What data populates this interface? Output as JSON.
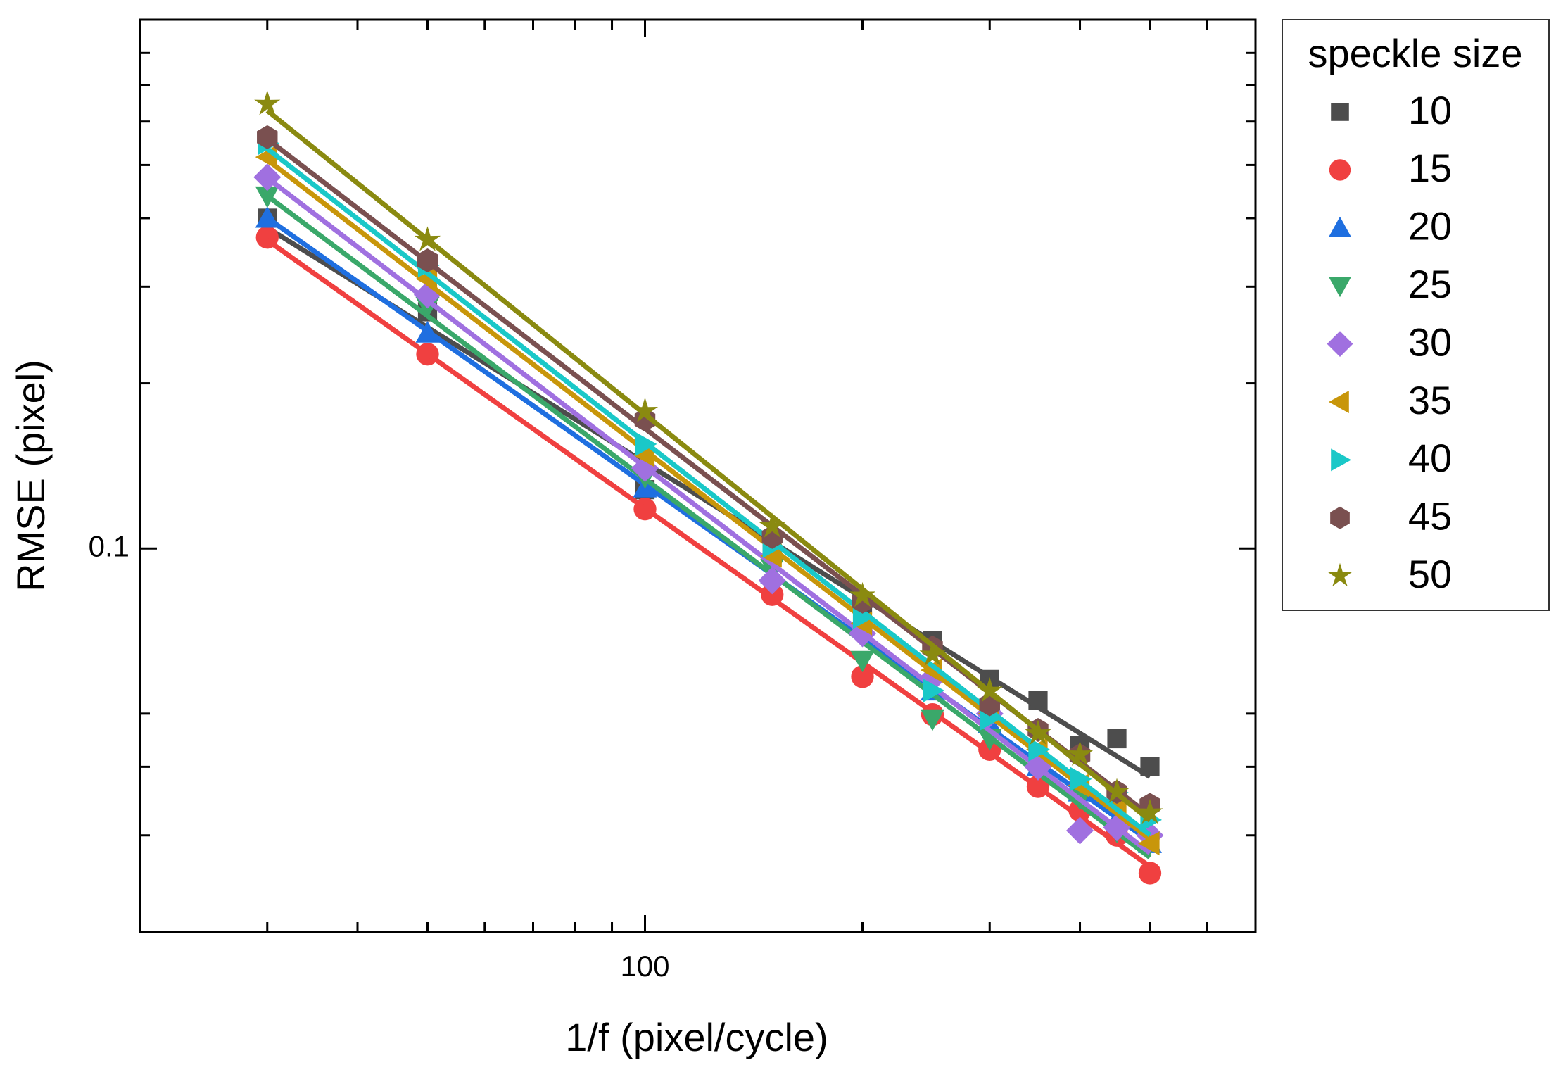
{
  "chart_data": {
    "type": "scatter",
    "x_label": "1/f (pixel/cycle)",
    "y_label": "RMSE (pixel)",
    "legend_title": "speckle size",
    "legend": "outside right",
    "x_log": true,
    "y_log": true,
    "fit": "linear log-log",
    "xlim": [
      20,
      700
    ],
    "ylim": [
      0.02,
      0.92
    ],
    "xticks": [
      100
    ],
    "yticks": [
      0.1
    ],
    "xminor_ticks": [
      30,
      40,
      50,
      60,
      70,
      80,
      90,
      200,
      300,
      400,
      500,
      600,
      700
    ],
    "yminor_ticks": [
      0.03,
      0.04,
      0.05,
      0.2,
      0.3,
      0.4,
      0.5,
      0.6,
      0.7,
      0.8
    ],
    "x": [
      30,
      50,
      100,
      150,
      200,
      250,
      300,
      350,
      400,
      450,
      500
    ],
    "series": [
      {
        "name": "10",
        "color": "#4d4d4d",
        "marker": "square",
        "values": [
          0.4,
          0.27,
          0.128,
          0.098,
          0.079,
          0.068,
          0.0577,
          0.0528,
          0.0437,
          0.045,
          0.04
        ]
      },
      {
        "name": "15",
        "color": "#f04040",
        "marker": "circle",
        "values": [
          0.369,
          0.226,
          0.118,
          0.0824,
          0.0584,
          0.0498,
          0.043,
          0.0368,
          0.0333,
          0.03,
          0.0256
        ]
      },
      {
        "name": "20",
        "color": "#1f6fe0",
        "marker": "triangle-up",
        "values": [
          0.4,
          0.247,
          0.129,
          0.09,
          0.072,
          0.055,
          0.048,
          0.04,
          0.036,
          0.032,
          0.029
        ]
      },
      {
        "name": "25",
        "color": "#3aa86a",
        "marker": "triangle-down",
        "values": [
          0.439,
          0.276,
          0.135,
          0.092,
          0.0625,
          0.0489,
          0.045,
          0.04,
          0.035,
          0.0305,
          0.029
        ]
      },
      {
        "name": "30",
        "color": "#a070e0",
        "marker": "diamond",
        "values": [
          0.475,
          0.29,
          0.14,
          0.0874,
          0.07,
          0.058,
          0.05,
          0.04,
          0.0306,
          0.031,
          0.03
        ]
      },
      {
        "name": "35",
        "color": "#c8960a",
        "marker": "triangle-left",
        "values": [
          0.517,
          0.31,
          0.148,
          0.097,
          0.073,
          0.06,
          0.05,
          0.043,
          0.037,
          0.034,
          0.029
        ]
      },
      {
        "name": "40",
        "color": "#1ac8c8",
        "marker": "triangle-right",
        "values": [
          0.548,
          0.328,
          0.155,
          0.101,
          0.075,
          0.0551,
          0.049,
          0.043,
          0.038,
          0.0359,
          0.032
        ]
      },
      {
        "name": "45",
        "color": "#7a5050",
        "marker": "hexagon",
        "values": [
          0.562,
          0.335,
          0.1716,
          0.105,
          0.08,
          0.066,
          0.052,
          0.0467,
          0.042,
          0.036,
          0.0341
        ]
      },
      {
        "name": "50",
        "color": "#8a8a10",
        "marker": "star",
        "values": [
          0.646,
          0.365,
          0.178,
          0.1097,
          0.082,
          0.064,
          0.055,
          0.046,
          0.0421,
          0.036,
          0.033
        ]
      }
    ]
  }
}
